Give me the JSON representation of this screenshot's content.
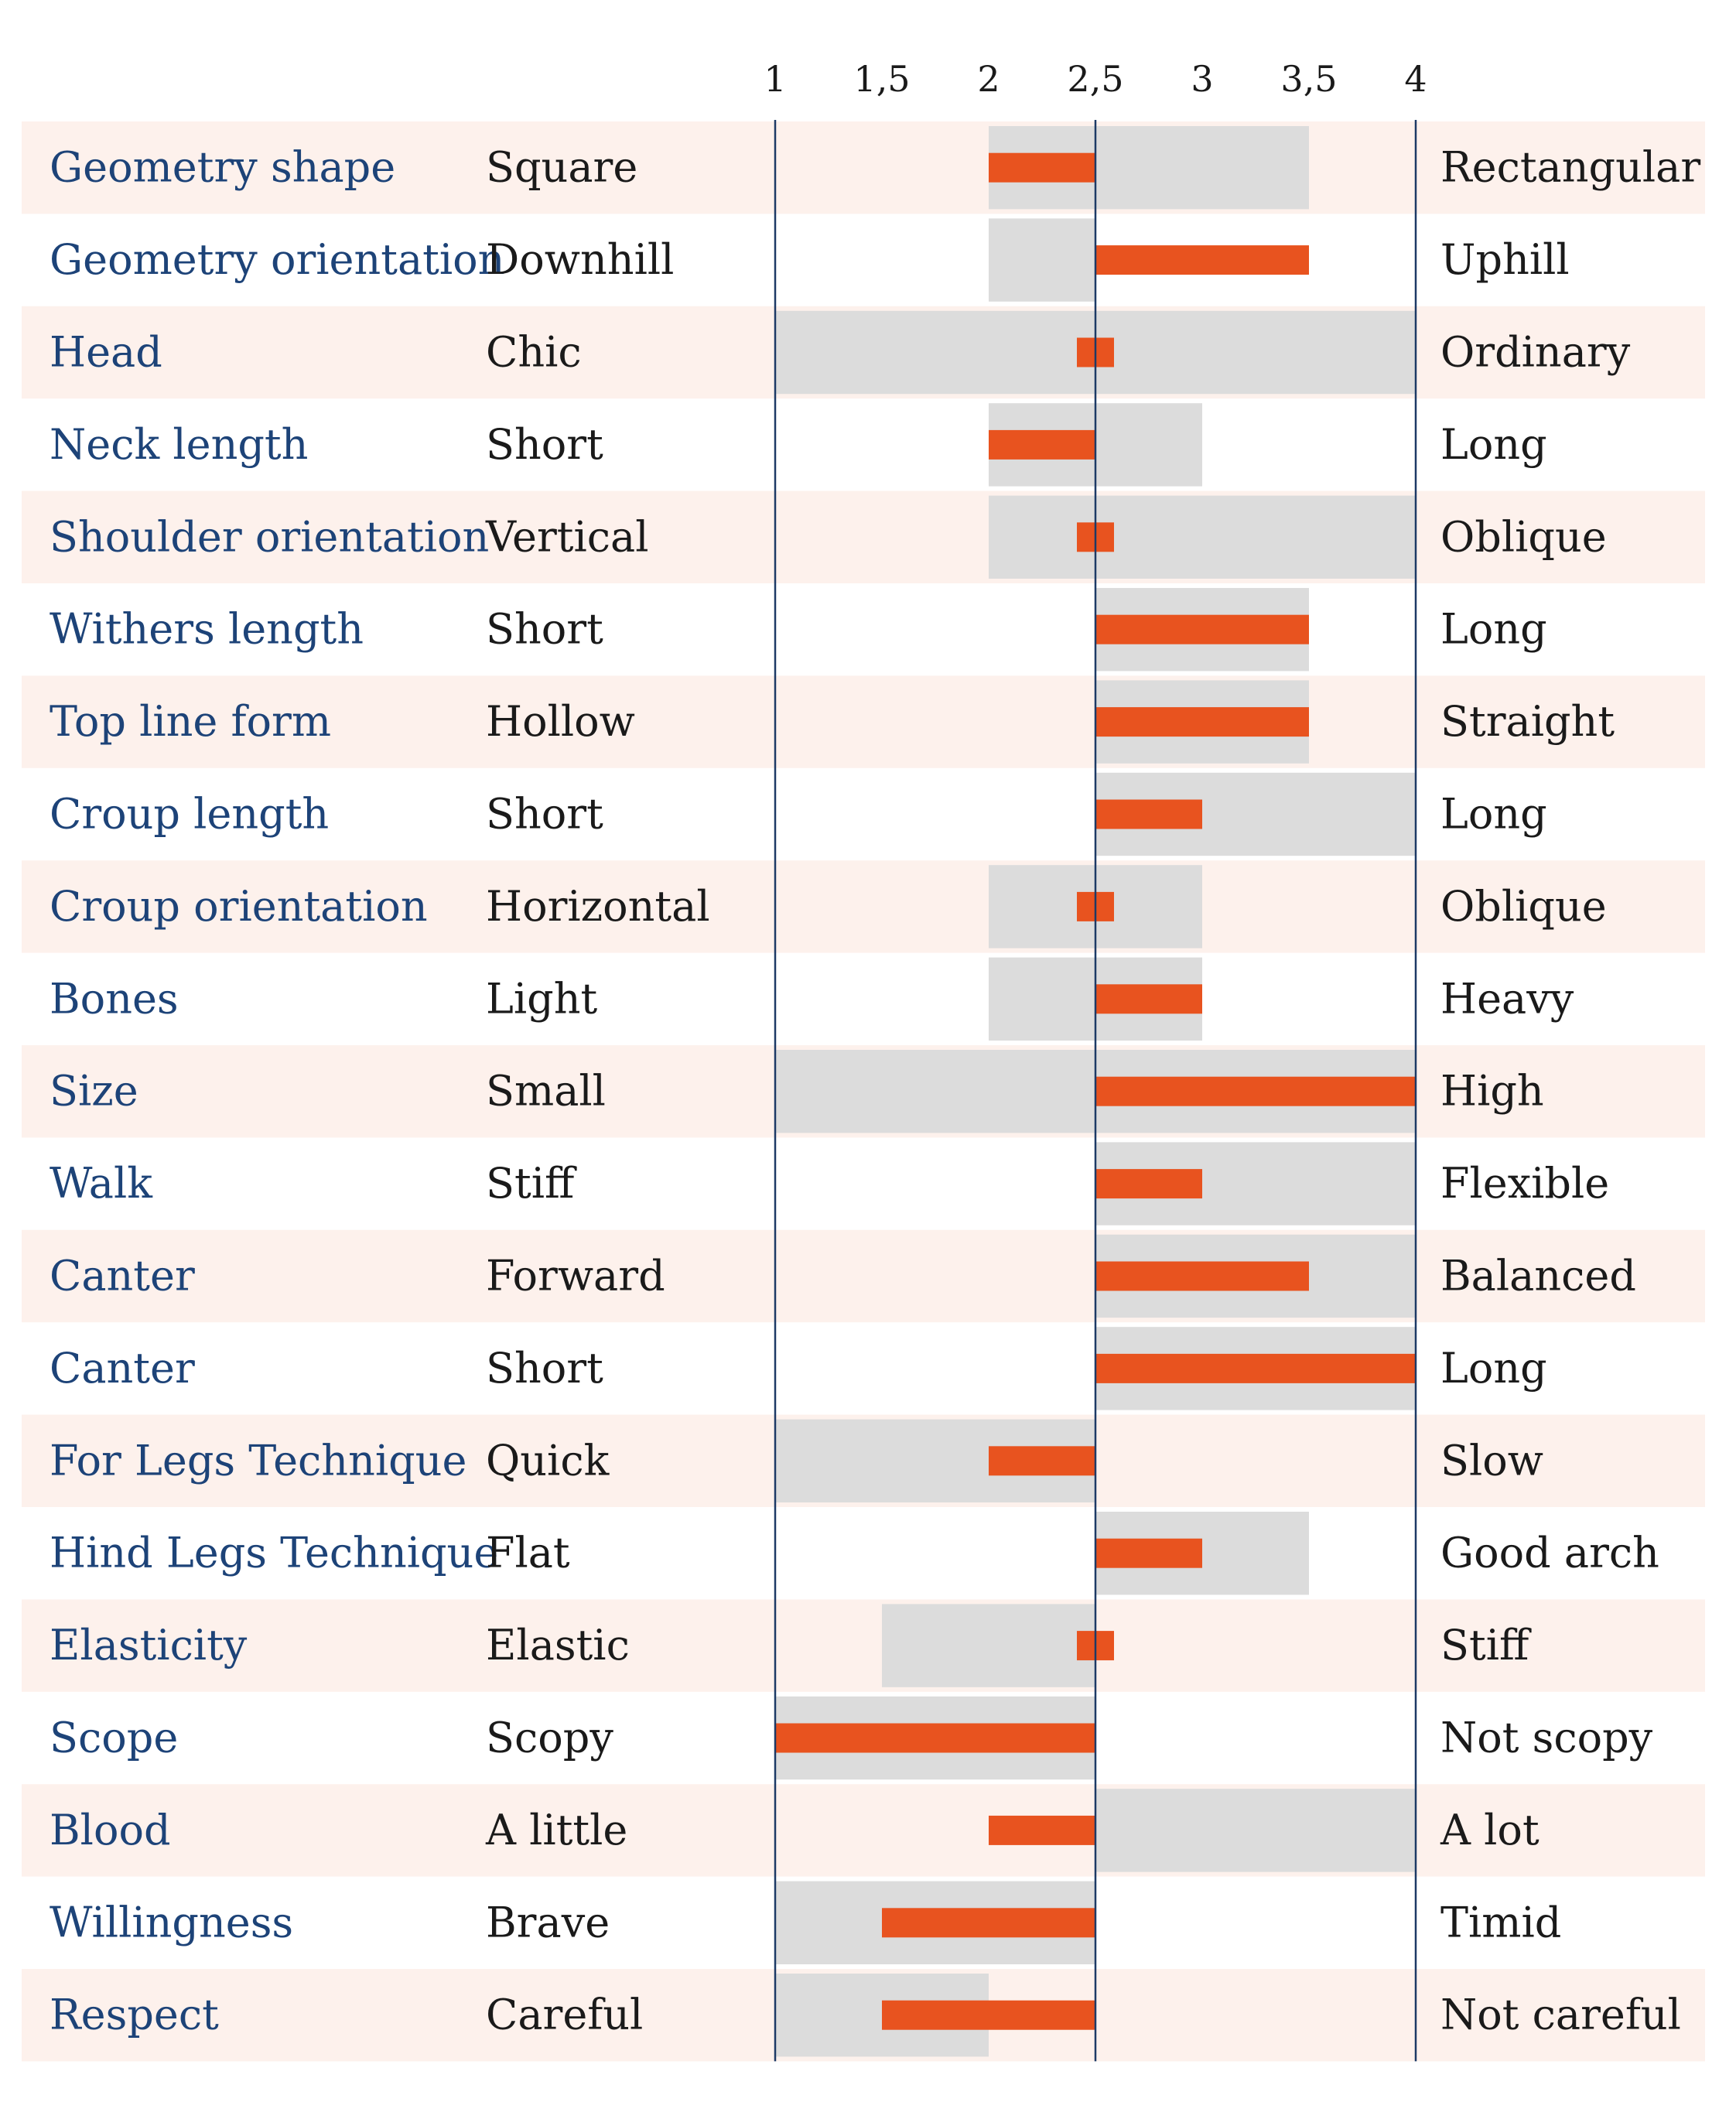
{
  "chart_data": {
    "type": "bar",
    "x_ticks": [
      1,
      1.5,
      2,
      2.5,
      3,
      3.5,
      4
    ],
    "x_tick_labels": [
      "1",
      "1,5",
      "2",
      "2,5",
      "3",
      "3,5",
      "4"
    ],
    "xlim": [
      1,
      4
    ],
    "baseline": 2.5,
    "rows": [
      {
        "trait": "Geometry shape",
        "low": "Square",
        "high": "Rectangular",
        "range": [
          2,
          3.5
        ],
        "value": 2
      },
      {
        "trait": "Geometry orientation",
        "low": "Downhill",
        "high": "Uphill",
        "range": [
          2,
          2.5
        ],
        "value": 3.5
      },
      {
        "trait": "Head",
        "low": "Chic",
        "high": "Ordinary",
        "range": [
          1,
          4
        ],
        "value": 2.5
      },
      {
        "trait": "Neck length",
        "low": "Short",
        "high": "Long",
        "range": [
          2,
          3
        ],
        "value": 2
      },
      {
        "trait": "Shoulder orientation",
        "low": "Vertical",
        "high": "Oblique",
        "range": [
          2,
          4
        ],
        "value": 2.5
      },
      {
        "trait": "Withers length",
        "low": "Short",
        "high": "Long",
        "range": [
          2.5,
          3.5
        ],
        "value": 3.5
      },
      {
        "trait": "Top line form",
        "low": "Hollow",
        "high": "Straight",
        "range": [
          2.5,
          3.5
        ],
        "value": 3.5
      },
      {
        "trait": "Croup length",
        "low": "Short",
        "high": "Long",
        "range": [
          2.5,
          4
        ],
        "value": 3
      },
      {
        "trait": "Croup orientation",
        "low": "Horizontal",
        "high": "Oblique",
        "range": [
          2,
          3
        ],
        "value": 2.5
      },
      {
        "trait": "Bones",
        "low": "Light",
        "high": "Heavy",
        "range": [
          2,
          3
        ],
        "value": 3
      },
      {
        "trait": "Size",
        "low": "Small",
        "high": "High",
        "range": [
          1,
          4
        ],
        "value": 4
      },
      {
        "trait": "Walk",
        "low": "Stiff",
        "high": "Flexible",
        "range": [
          2.5,
          4
        ],
        "value": 3
      },
      {
        "trait": "Canter",
        "low": "Forward",
        "high": "Balanced",
        "range": [
          2.5,
          4
        ],
        "value": 3.5
      },
      {
        "trait": "Canter",
        "low": "Short",
        "high": "Long",
        "range": [
          2.5,
          4
        ],
        "value": 4
      },
      {
        "trait": "For Legs Technique",
        "low": "Quick",
        "high": "Slow",
        "range": [
          1,
          2.5
        ],
        "value": 2
      },
      {
        "trait": "Hind Legs Technique",
        "low": "Flat",
        "high": "Good arch",
        "range": [
          2.5,
          3.5
        ],
        "value": 3
      },
      {
        "trait": "Elasticity",
        "low": "Elastic",
        "high": "Stiff",
        "range": [
          1.5,
          2.5
        ],
        "value": 2.5
      },
      {
        "trait": "Scope",
        "low": "Scopy",
        "high": "Not scopy",
        "range": [
          1,
          2.5
        ],
        "value": 1
      },
      {
        "trait": "Blood",
        "low": "A little",
        "high": "A lot",
        "range": [
          2.5,
          4
        ],
        "value": 2
      },
      {
        "trait": "Willingness",
        "low": "Brave",
        "high": "Timid",
        "range": [
          1,
          2.5
        ],
        "value": 1.5
      },
      {
        "trait": "Respect",
        "low": "Careful",
        "high": "Not careful",
        "range": [
          1,
          2
        ],
        "value": 1.5
      }
    ]
  },
  "colors": {
    "stripe": "#fdf1ec",
    "range": "#dcdcdc",
    "bar": "#e8531f",
    "axis_line": "#1d3a66",
    "trait_text": "#1d4378",
    "pole_text": "#1a1a1a"
  }
}
